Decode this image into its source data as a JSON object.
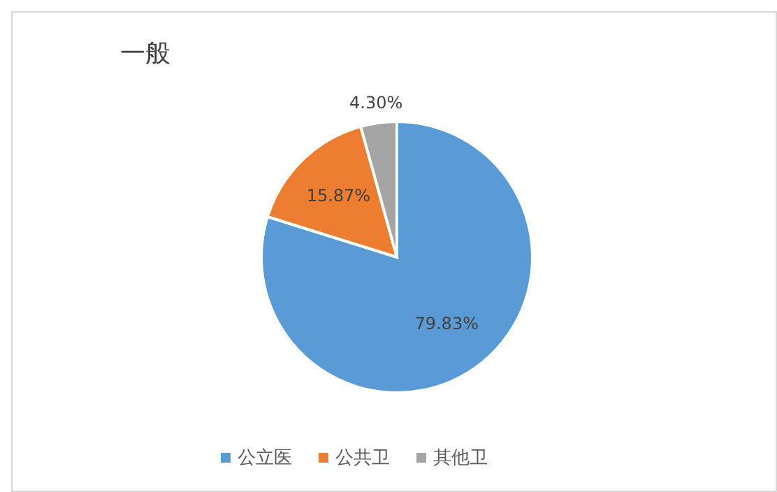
{
  "chart_data": {
    "type": "pie",
    "title": "一般",
    "categories": [
      "公立医",
      "公共卫",
      "其他卫"
    ],
    "values": [
      79.83,
      15.87,
      4.3
    ],
    "value_labels": [
      "79.83%",
      "15.87%",
      "4.30%"
    ],
    "colors": [
      "#5b9bd5",
      "#ed7d31",
      "#a5a5a5"
    ],
    "legend": "bottom"
  }
}
